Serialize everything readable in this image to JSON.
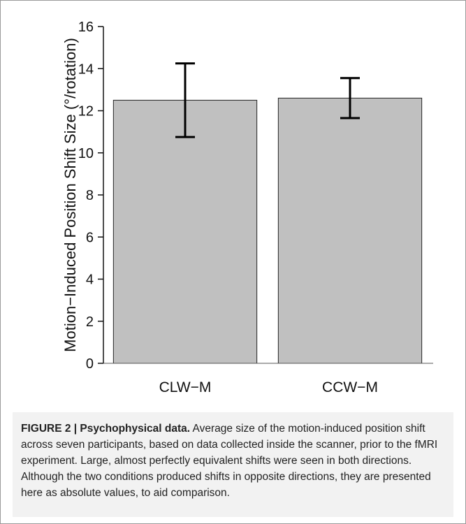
{
  "chart_data": {
    "type": "bar",
    "categories": [
      "CLW−M",
      "CCW−M"
    ],
    "values": [
      12.5,
      12.6
    ],
    "error_bars": [
      {
        "low": 10.75,
        "high": 14.25
      },
      {
        "low": 11.65,
        "high": 13.55
      }
    ],
    "xlabel": "",
    "ylabel": "Motion−Induced Position Shift Size (°/rotation)",
    "ylim": [
      0,
      16
    ],
    "yticks": [
      "0",
      "2",
      "4",
      "6",
      "8",
      "10",
      "12",
      "14",
      "16"
    ],
    "grid": false,
    "bar_color": "#c0c0c0"
  },
  "caption": {
    "figure_label": "FIGURE 2 | Psychophysical data.",
    "text": "Average size of the motion-induced position shift across seven participants, based on data collected inside the scanner, prior to the fMRI experiment. Large, almost perfectly equivalent shifts were seen in both directions. Although the two conditions produced shifts in opposite directions, they are presented here as absolute values, to aid comparison."
  }
}
